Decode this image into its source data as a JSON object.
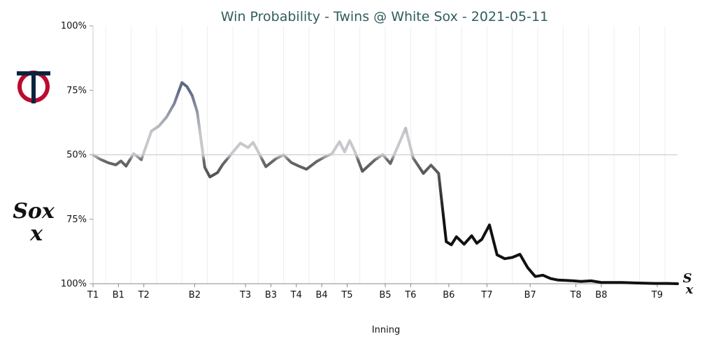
{
  "chart_data": {
    "type": "line",
    "title": "Win Probability - Twins @ White Sox - 2021-05-11",
    "xlabel": "Inning",
    "ylabel": "",
    "y_tick_labels": [
      "100%",
      "75%",
      "50%",
      "75%",
      "100%"
    ],
    "y_description": "Win probability, top half = Twins, bottom half = White Sox",
    "x_tick_labels": [
      "T1",
      "B1",
      "T2",
      "B2",
      "T3",
      "B3",
      "T4",
      "B4",
      "T5",
      "B5",
      "T6",
      "B6",
      "T7",
      "B7",
      "T8",
      "B8",
      "T9"
    ],
    "x_tick_positions": [
      0,
      1,
      2,
      4,
      6,
      7,
      8,
      9,
      10,
      11.5,
      12.5,
      14,
      15.5,
      17.2,
      19,
      20,
      22.2
    ],
    "reference_line": 50,
    "series": [
      {
        "x": [
          0,
          0.3,
          0.6,
          0.9,
          1.1,
          1.3,
          1.6,
          1.9,
          2.3,
          2.6,
          2.9,
          3.2,
          3.5,
          3.7,
          3.9,
          4.1,
          4.4,
          4.6,
          4.9,
          5.1,
          5.5,
          5.8,
          6.1,
          6.3,
          6.6,
          6.8,
          7.2,
          7.5,
          7.8,
          8.1,
          8.4,
          8.8,
          9.1,
          9.4,
          9.7,
          9.9,
          10.1,
          10.3,
          10.6,
          11.1,
          11.4,
          11.7,
          12.0,
          12.3,
          12.6,
          13.0,
          13.3,
          13.6,
          13.9,
          14.1,
          14.3,
          14.6,
          14.9,
          15.1,
          15.3,
          15.6,
          15.9,
          16.2,
          16.5,
          16.8,
          17.1,
          17.4,
          17.7,
          18.0,
          18.3,
          18.6,
          18.9,
          19.2,
          19.6,
          20.0,
          20.4,
          20.8,
          21.3,
          21.7,
          22.1,
          22.6,
          23.0
        ],
        "y": [
          50,
          48.2,
          46.9,
          46.1,
          47.6,
          45.6,
          50.5,
          48.1,
          59.2,
          61.2,
          64.7,
          69.9,
          78.0,
          76.4,
          73.0,
          66.7,
          45.1,
          41.4,
          43.1,
          46.2,
          51.0,
          54.5,
          52.8,
          54.8,
          49.3,
          45.4,
          48.5,
          50.0,
          47.0,
          45.6,
          44.4,
          47.4,
          49.1,
          50.4,
          55.1,
          51.1,
          55.5,
          51.3,
          43.6,
          48.1,
          50.1,
          46.6,
          53.4,
          60.3,
          48.7,
          42.8,
          46.0,
          42.8,
          16.3,
          15.1,
          18.2,
          15.3,
          18.6,
          15.7,
          17.2,
          22.8,
          11.2,
          9.7,
          10.2,
          11.4,
          6.3,
          2.8,
          3.3,
          2.0,
          1.4,
          1.3,
          1.1,
          0.9,
          1.1,
          0.5,
          0.5,
          0.5,
          0.3,
          0.2,
          0.1,
          0.1,
          0.0
        ],
        "unit": "percent Twins win probability",
        "gradient_colors": [
          "#c8c8cc",
          "#5c6a86",
          "#c8c8cc",
          "#111111"
        ]
      }
    ],
    "xlim": [
      0,
      23.0
    ],
    "ylim": [
      0,
      100
    ],
    "grid": "vertical lines only",
    "legend": "team logos on left side (Twins top, White Sox bottom) and White Sox logo at line end",
    "top_team": "Twins",
    "bottom_team": "White Sox",
    "colors": {
      "title": "#2f5d5c",
      "twins_line": "#5c6a86",
      "neutral_line": "#c8c8cc",
      "white_sox_line": "#111111",
      "twins_navy": "#0c2340",
      "twins_red": "#ba0c2f",
      "grid": "#eeeeee",
      "reference": "#cfcfcf"
    },
    "icons": [
      "twins-logo-icon",
      "white-sox-logo-icon"
    ],
    "logo_text": {
      "twins_logo": "TC",
      "white_sox_logo": "Sox"
    }
  }
}
